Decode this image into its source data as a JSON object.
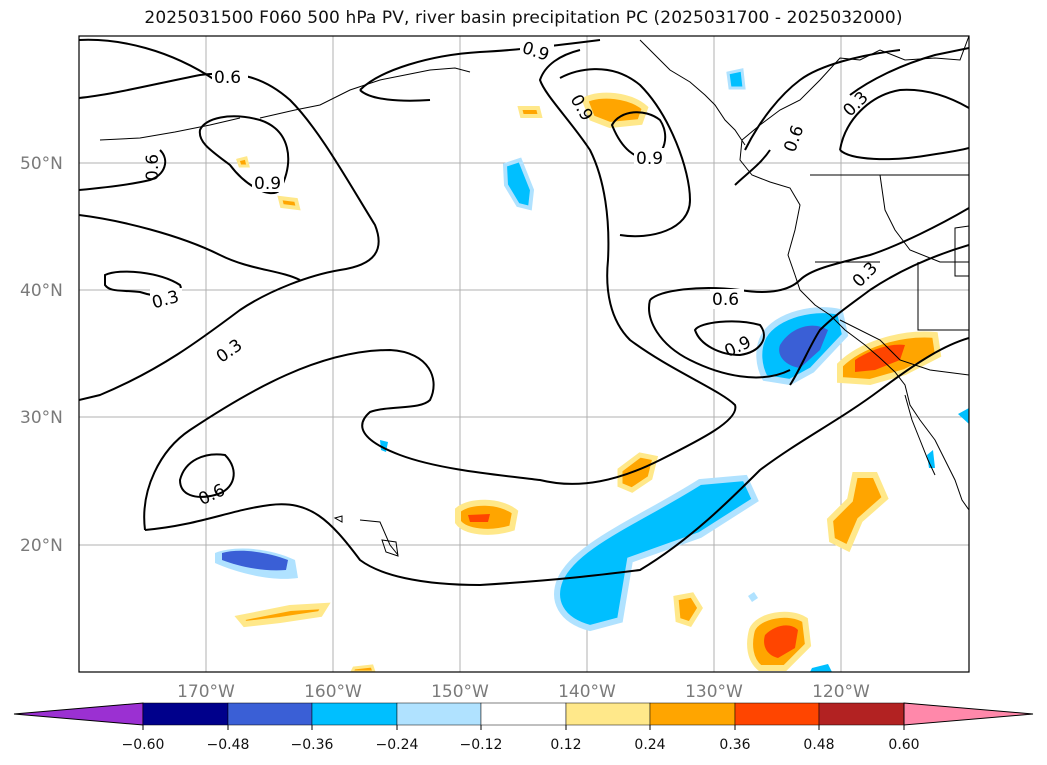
{
  "title": "2025031500 F060 500 hPa PV, river basin precipitation PC (2025031700 - 2025032000)",
  "lat_labels": [
    "50°N",
    "40°N",
    "30°N",
    "20°N"
  ],
  "lon_labels": [
    "170°W",
    "160°W",
    "150°W",
    "140°W",
    "130°W",
    "120°W"
  ],
  "colorbar": {
    "tick_labels": [
      "−0.60",
      "−0.48",
      "−0.36",
      "−0.24",
      "−0.12",
      "0.12",
      "0.24",
      "0.36",
      "0.48",
      "0.60"
    ],
    "colors": [
      "#9b30d2",
      "#00008b",
      "#3a5fd6",
      "#00bfff",
      "#b0e2ff",
      "#ffffff",
      "#ffe88a",
      "#ffa500",
      "#ff4500",
      "#b22222",
      "#ff88aa"
    ]
  },
  "contour_labels": [
    {
      "text": "0.6"
    },
    {
      "text": "0.9"
    },
    {
      "text": "0.6"
    },
    {
      "text": "0.9"
    },
    {
      "text": "0.9"
    },
    {
      "text": "0.9"
    },
    {
      "text": "0.6"
    },
    {
      "text": "0.3"
    },
    {
      "text": "0.3"
    },
    {
      "text": "0.3"
    },
    {
      "text": "0.6"
    },
    {
      "text": "0.9"
    },
    {
      "text": "0.3"
    },
    {
      "text": "0.6"
    }
  ]
}
